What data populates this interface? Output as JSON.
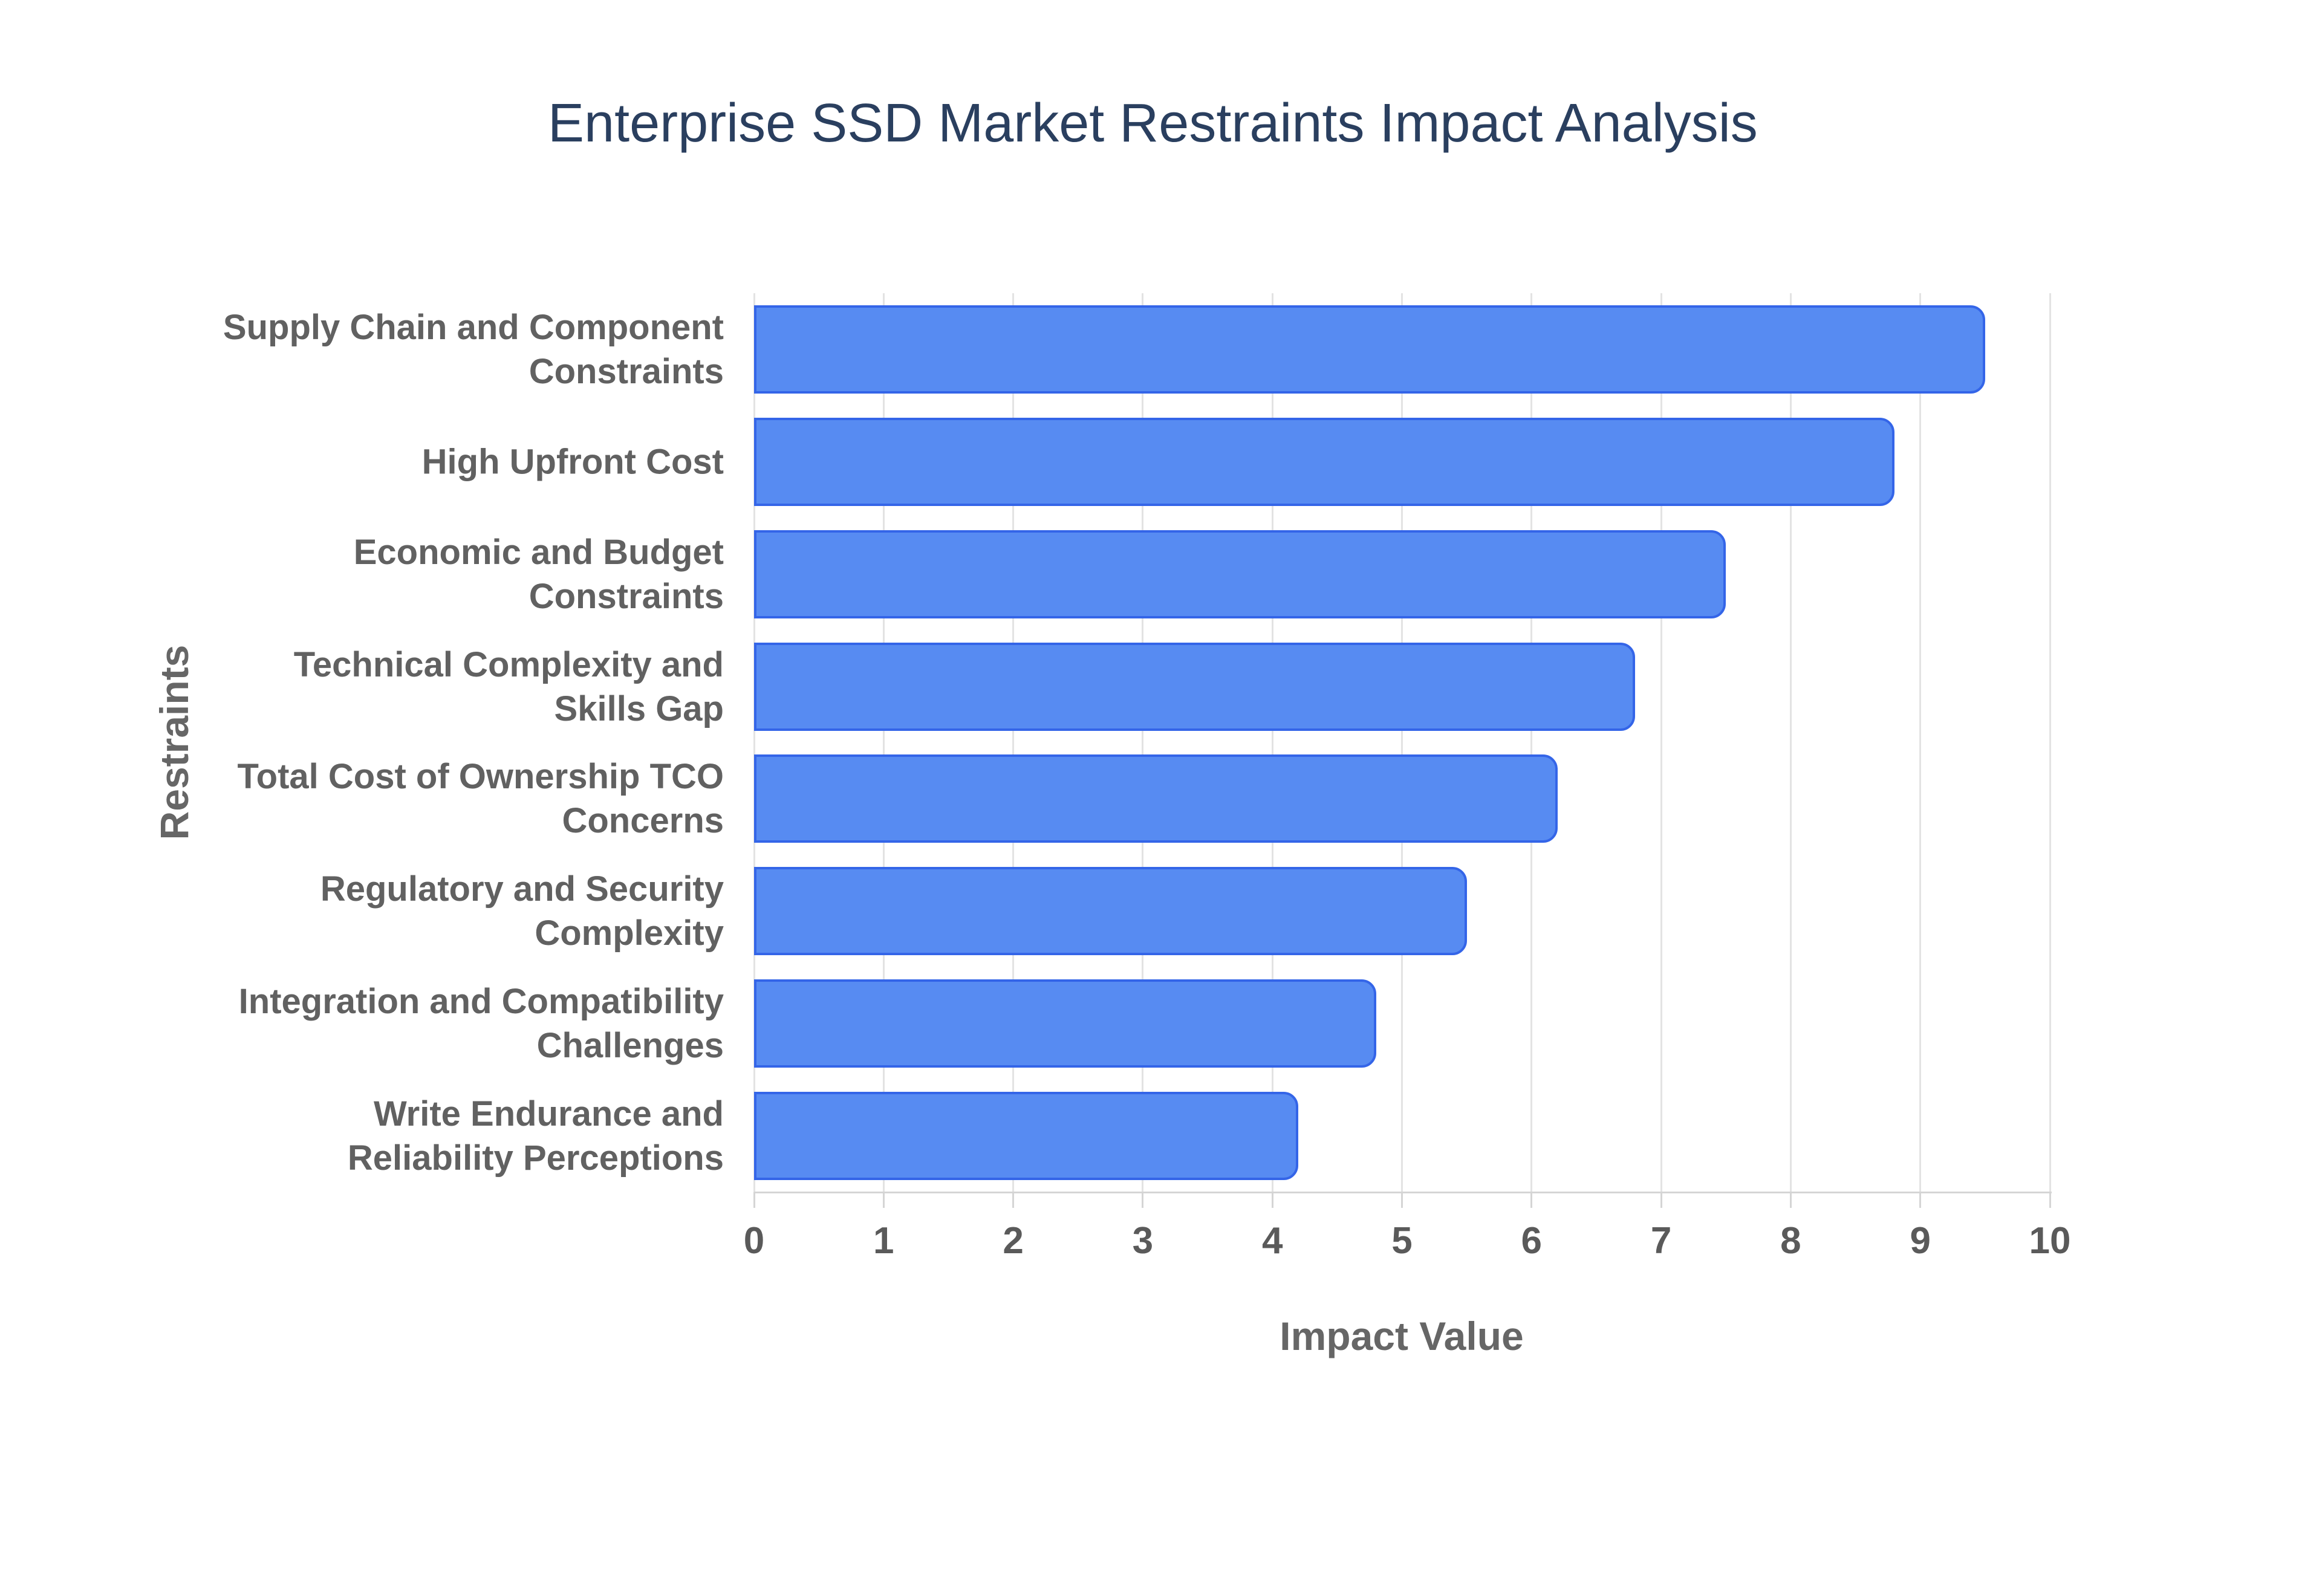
{
  "chart_data": {
    "type": "bar",
    "orientation": "horizontal",
    "title": "Enterprise SSD Market Restraints Impact Analysis",
    "xlabel": "Impact Value",
    "ylabel": "Restraints",
    "categories": [
      "Supply Chain and Component\nConstraints",
      "High Upfront Cost",
      "Economic and Budget\nConstraints",
      "Technical Complexity and\nSkills Gap",
      "Total Cost of Ownership TCO\nConcerns",
      "Regulatory and Security\nComplexity",
      "Integration and Compatibility\nChallenges",
      "Write Endurance and\nReliability Perceptions"
    ],
    "values": [
      9.5,
      8.8,
      7.5,
      6.8,
      6.2,
      5.5,
      4.8,
      4.2
    ],
    "x_ticks": [
      "0",
      "1",
      "2",
      "3",
      "4",
      "5",
      "6",
      "7",
      "8",
      "9",
      "10"
    ],
    "xlim": [
      0,
      10
    ],
    "grid": "vertical-only",
    "legend": "none",
    "colors": {
      "bar_fill": "#578bf2",
      "bar_border": "#3465e8",
      "gridline": "#e3e3e3",
      "axis_line": "#d5d5d5",
      "title_text": "#2a3f5f",
      "tick_text": "#5a5a5a",
      "category_text": "#616161",
      "axis_title_text": "#666666",
      "background": "#ffffff"
    }
  }
}
